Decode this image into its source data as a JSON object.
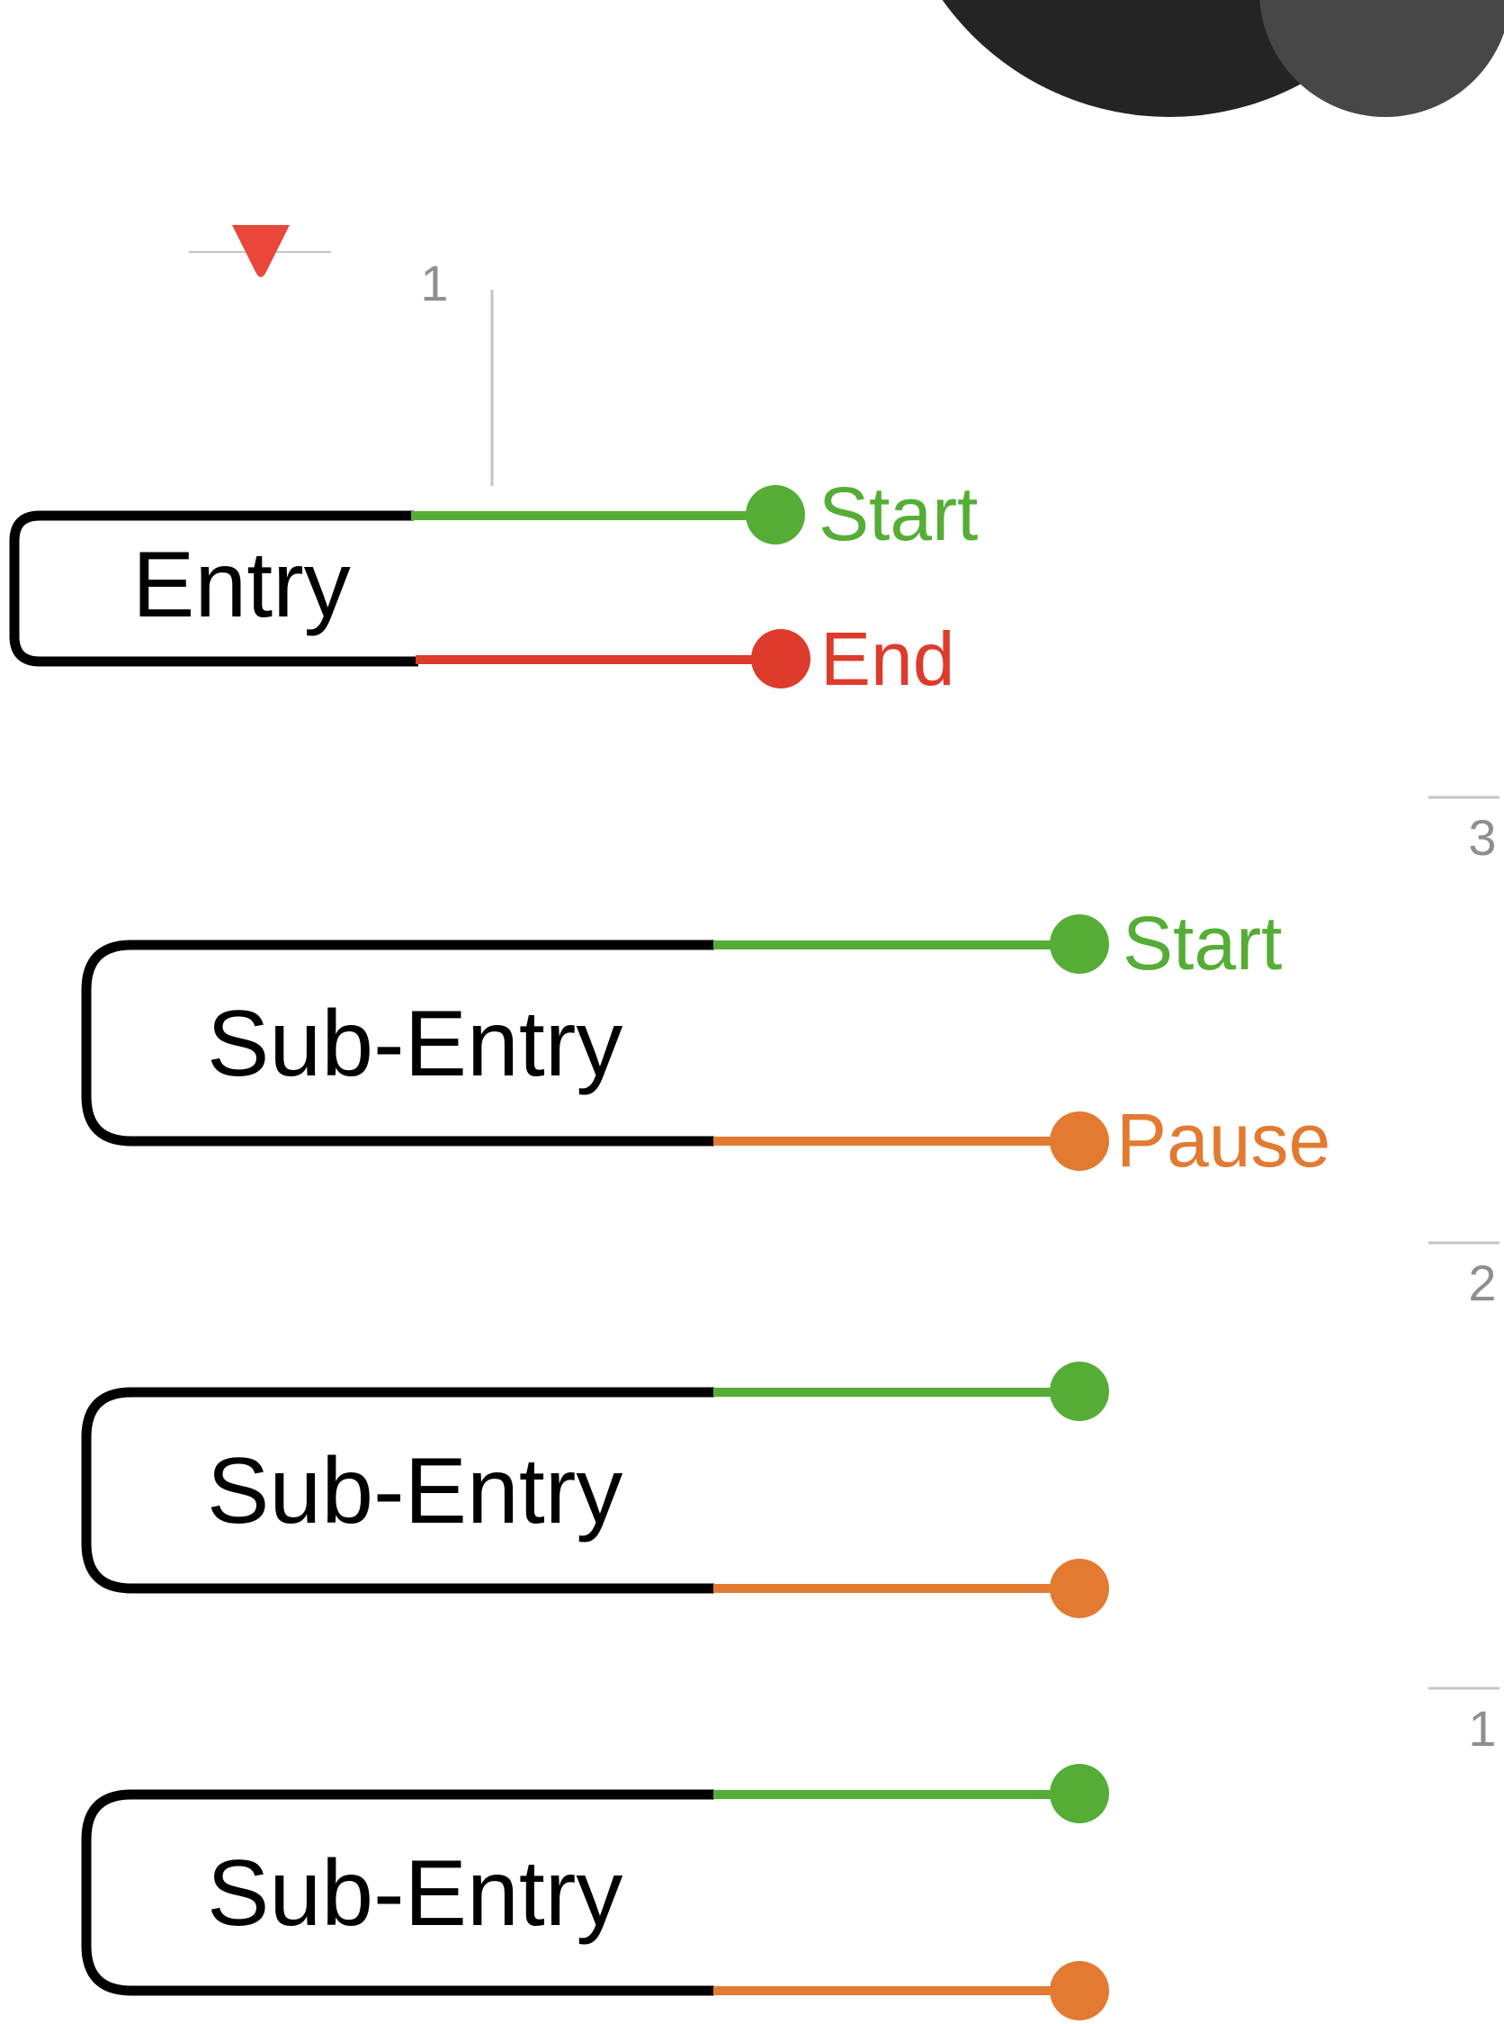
{
  "colors": {
    "start": "#55ad36",
    "end": "#dd3b2b",
    "pause": "#e27a32",
    "bracket": "#000000",
    "marker": "#e8473a",
    "divider": "#c4c4c8",
    "number": "#8e8e93",
    "avatar_large": "#242424",
    "avatar_small": "#474747"
  },
  "icons": {
    "top_marker": "triangle-down-icon",
    "avatar": "avatar-icon"
  },
  "top": {
    "column_number": "1"
  },
  "entry": {
    "label": "Entry",
    "start_label": "Start",
    "end_label": "End"
  },
  "sub_entries": [
    {
      "label": "Sub-Entry",
      "index_number": "3",
      "start_label": "Start",
      "pause_label": "Pause"
    },
    {
      "label": "Sub-Entry",
      "index_number": "2",
      "start_label": "",
      "pause_label": ""
    },
    {
      "label": "Sub-Entry",
      "index_number": "1",
      "start_label": "",
      "pause_label": ""
    }
  ]
}
